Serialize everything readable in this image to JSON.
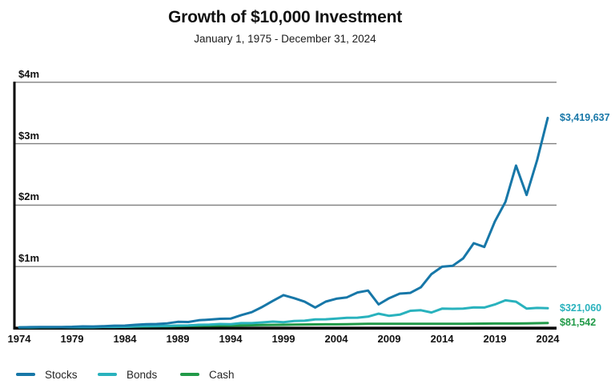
{
  "chart_data": {
    "type": "line",
    "title": "Growth of $10,000 Investment",
    "subtitle": "January 1, 1975 - December 31, 2024",
    "grid_color": "#7f7f7f",
    "axis_color": "#000000",
    "y_axis": {
      "min": 0,
      "max": 4000000,
      "gridlines": true,
      "ticks": [
        {
          "value": 4000000,
          "label": "$4m"
        },
        {
          "value": 3000000,
          "label": "$3m"
        },
        {
          "value": 2000000,
          "label": "$2m"
        },
        {
          "value": 1000000,
          "label": "$1m"
        }
      ]
    },
    "x_axis": {
      "tick_years": [
        1974,
        1979,
        1984,
        1989,
        1994,
        1999,
        2004,
        2009,
        2014,
        2019,
        2024
      ]
    },
    "years": [
      1974,
      1975,
      1976,
      1977,
      1978,
      1979,
      1980,
      1981,
      1982,
      1983,
      1984,
      1985,
      1986,
      1987,
      1988,
      1989,
      1990,
      1991,
      1992,
      1993,
      1994,
      1995,
      1996,
      1997,
      1998,
      1999,
      2000,
      2001,
      2002,
      2003,
      2004,
      2005,
      2006,
      2007,
      2008,
      2009,
      2010,
      2011,
      2012,
      2013,
      2014,
      2015,
      2016,
      2017,
      2018,
      2019,
      2020,
      2021,
      2022,
      2023,
      2024
    ],
    "legend": {
      "position": "bottom-left"
    },
    "series": [
      {
        "name": "Stocks",
        "color": "#1777a8",
        "end_label": "$3,419,637",
        "end_value": 3419637,
        "values": [
          10000,
          13720,
          16985,
          15762,
          16802,
          19894,
          26340,
          25049,
          30435,
          37313,
          39664,
          52237,
          62005,
          65291,
          76129,
          100262,
          97154,
          126786,
          136422,
          150201,
          152154,
          209364,
          257518,
          343529,
          441778,
          534551,
          485907,
          428084,
          333478,
          429186,
          475967,
          499289,
          578177,
          609977,
          384285,
          486121,
          559525,
          571275,
          662679,
          877387,
          997589,
          1011555,
          1132942,
          1379923,
          1319207,
          1734757,
          2053951,
          2643435,
          2164973,
          2734362,
          3419637
        ]
      },
      {
        "name": "Bonds",
        "color": "#29b2bd",
        "end_label": "$321,060",
        "end_value": 321060,
        "values": [
          10000,
          10920,
          12754,
          12665,
          12513,
          12363,
          11868,
          12094,
          16980,
          17099,
          19749,
          25871,
          32209,
          31339,
          34379,
          40602,
          43119,
          51441,
          55608,
          65729,
          60602,
          79813,
          79095,
          91671,
          103680,
          94349,
          114634,
          118875,
          140035,
          141995,
          154065,
          166082,
          168075,
          184714,
          232555,
          197904,
          217892,
          279338,
          289394,
          252352,
          314683,
          312480,
          316230,
          335836,
          333821,
          383226,
          451057,
          428504,
          316664,
          326480,
          321060
        ]
      },
      {
        "name": "Cash",
        "color": "#219a48",
        "end_label": "$81,542",
        "end_value": 81542,
        "values": [
          10000,
          10580,
          11120,
          11687,
          12528,
          13831,
          15380,
          17641,
          19494,
          21209,
          23309,
          25104,
          26660,
          28126,
          29926,
          32440,
          34970,
          36929,
          38221,
          39330,
          40864,
          43152,
          45396,
          47802,
          50144,
          52501,
          55599,
          57712,
          58693,
          59280,
          59991,
          61791,
          64757,
          67800,
          68885,
          68954,
          69023,
          69023,
          69092,
          69092,
          69092,
          69092,
          69299,
          69923,
          71252,
          72891,
          73328,
          73328,
          74428,
          78149,
          81542
        ]
      }
    ]
  }
}
